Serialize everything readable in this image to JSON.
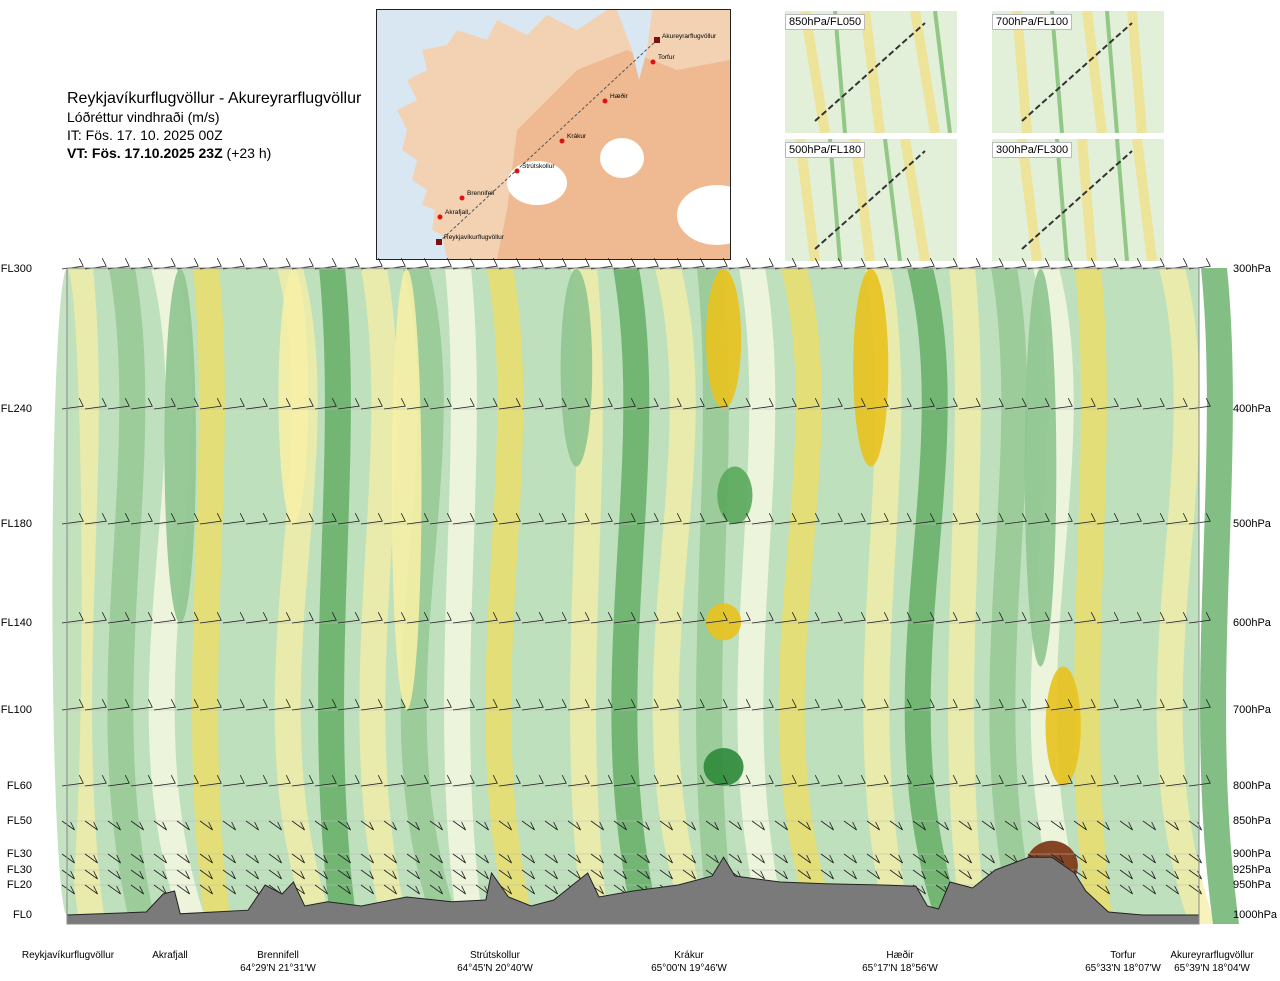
{
  "header": {
    "route": "Reykjavíkurflugvöllur - Akureyrarflugvöllur",
    "parameter": "Lóðréttur vindhraði (m/s)",
    "issue_time": "IT: Fös. 17. 10. 2025 00Z",
    "valid_time": "VT: Fös. 17.10.2025 23Z",
    "lead_time": "(+23 h)"
  },
  "route_map": {
    "stations": [
      {
        "name": "Akureyrarflugvöllur",
        "marker": "square"
      },
      {
        "name": "Torfur",
        "marker": "circle"
      },
      {
        "name": "Hæðir",
        "marker": "circle"
      },
      {
        "name": "Krákur",
        "marker": "circle"
      },
      {
        "name": "Strútskollur",
        "marker": "circle"
      },
      {
        "name": "Brennifell",
        "marker": "circle"
      },
      {
        "name": "Akrafjall",
        "marker": "circle"
      },
      {
        "name": "Reykjavíkurflugvöllur",
        "marker": "square"
      }
    ],
    "colors": {
      "sea": "#d9e7f3",
      "land": "#f3d2b4",
      "highland": "#ecaa7a",
      "glacier": "#ffffff",
      "track": "#555555",
      "station": "#dd1111"
    }
  },
  "mini_maps": [
    {
      "label": "850hPa/FL050"
    },
    {
      "label": "700hPa/FL100"
    },
    {
      "label": "500hPa/FL180"
    },
    {
      "label": "300hPa/FL300"
    }
  ],
  "chart_data": {
    "type": "heatmap",
    "variable": "vertical wind speed (m/s)",
    "y_levels_left": [
      "FL300",
      "FL240",
      "FL180",
      "FL140",
      "FL100",
      "FL60",
      "FL50",
      "FL30",
      "FL30",
      "FL20",
      "FL0"
    ],
    "y_levels_right": [
      "300hPa",
      "400hPa",
      "500hPa",
      "600hPa",
      "700hPa",
      "800hPa",
      "850hPa",
      "900hPa",
      "925hPa",
      "950hPa",
      "1000hPa"
    ],
    "pressure_hpa": [
      300,
      400,
      500,
      600,
      700,
      800,
      850,
      900,
      925,
      950,
      1000
    ],
    "x_stations": [
      {
        "name": "Reykjavíkurflugvöllur",
        "coord": "",
        "pos": 0.0
      },
      {
        "name": "Akrafjall",
        "coord": "",
        "pos": 0.09
      },
      {
        "name": "Brennifell",
        "coord": "64°29'N 21°31'W",
        "pos": 0.188
      },
      {
        "name": "Strútskollur",
        "coord": "64°45'N 20°40'W",
        "pos": 0.377
      },
      {
        "name": "Krákur",
        "coord": "65°00'N 19°46'W",
        "pos": 0.572
      },
      {
        "name": "Hæðir",
        "coord": "65°17'N 18°56'W",
        "pos": 0.768
      },
      {
        "name": "Torfur",
        "coord": "65°33'N 18°07'W",
        "pos": 0.953
      },
      {
        "name": "Akureyrarflugvöllur",
        "coord": "65°39'N 18°04'W",
        "pos": 1.0
      }
    ],
    "color_scale": [
      {
        "w": -1.0,
        "color": "#2e8a3a"
      },
      {
        "w": -0.6,
        "color": "#5aa85c"
      },
      {
        "w": -0.3,
        "color": "#8fc58f"
      },
      {
        "w": -0.1,
        "color": "#bfe0bd"
      },
      {
        "w": 0.0,
        "color": "#d9edd6"
      },
      {
        "w": 0.05,
        "color": "#fbfbe6"
      },
      {
        "w": 0.15,
        "color": "#f6efa6"
      },
      {
        "w": 0.35,
        "color": "#efdd60"
      },
      {
        "w": 0.6,
        "color": "#e9c21e"
      },
      {
        "w": 0.9,
        "color": "#e0951a"
      },
      {
        "w": 1.4,
        "color": "#b4561a"
      },
      {
        "w": 2.0,
        "color": "#7a3210"
      }
    ],
    "features": [
      {
        "pos": 0.0,
        "p_top": 300,
        "p_bottom": 1000,
        "w": -0.1
      },
      {
        "pos": 0.1,
        "p_top": 300,
        "p_bottom": 600,
        "w": -0.3
      },
      {
        "pos": 0.2,
        "p_top": 300,
        "p_bottom": 500,
        "w": 0.15
      },
      {
        "pos": 0.3,
        "p_top": 300,
        "p_bottom": 700,
        "w": 0.15
      },
      {
        "pos": 0.45,
        "p_top": 300,
        "p_bottom": 450,
        "w": -0.3
      },
      {
        "pos": 0.58,
        "p_top": 300,
        "p_bottom": 400,
        "w": 0.6
      },
      {
        "pos": 0.59,
        "p_top": 450,
        "p_bottom": 500,
        "w": -0.6
      },
      {
        "pos": 0.58,
        "p_top": 580,
        "p_bottom": 620,
        "w": 0.6
      },
      {
        "pos": 0.58,
        "p_top": 750,
        "p_bottom": 800,
        "w": -1.0
      },
      {
        "pos": 0.71,
        "p_top": 300,
        "p_bottom": 450,
        "w": 0.6
      },
      {
        "pos": 0.86,
        "p_top": 300,
        "p_bottom": 650,
        "w": -0.3
      },
      {
        "pos": 0.88,
        "p_top": 650,
        "p_bottom": 800,
        "w": 0.6
      },
      {
        "pos": 0.87,
        "p_top": 880,
        "p_bottom": 960,
        "w": 2.0
      }
    ],
    "wind_barb_levels_hpa": [
      300,
      400,
      500,
      600,
      700,
      800,
      850,
      900,
      925,
      950
    ],
    "xlabel": "",
    "ylabel": "",
    "grid": true
  }
}
